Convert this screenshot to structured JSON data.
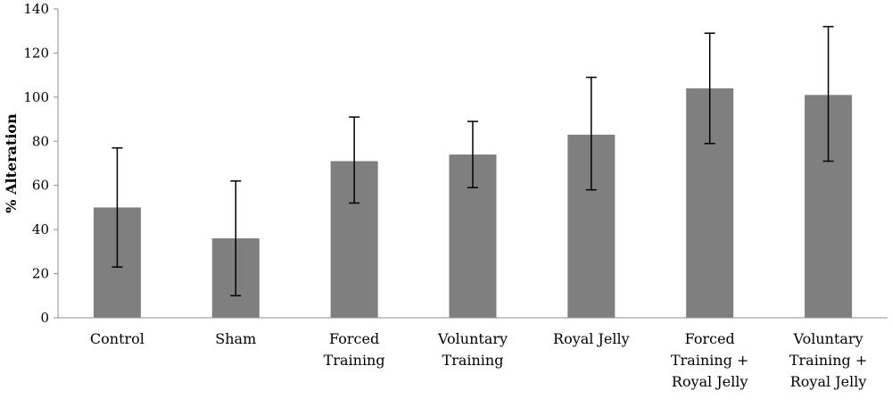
{
  "chart_data": {
    "type": "bar",
    "title": "",
    "xlabel": "",
    "ylabel": "% Alteration",
    "ylim": [
      0,
      140
    ],
    "yticks": [
      0,
      20,
      40,
      60,
      80,
      100,
      120,
      140
    ],
    "grid": false,
    "legend": "none",
    "bar_color": "#7f7f7f",
    "categories": [
      [
        "Control"
      ],
      [
        "Sham"
      ],
      [
        "Forced",
        "Training"
      ],
      [
        "Voluntary",
        "Training"
      ],
      [
        "Royal Jelly"
      ],
      [
        "Forced",
        "Training +",
        "Royal Jelly"
      ],
      [
        "Voluntary",
        "Training +",
        "Royal Jelly"
      ]
    ],
    "values": [
      50,
      36,
      71,
      74,
      83,
      104,
      101
    ],
    "error_low": [
      23,
      10,
      52,
      59,
      58,
      79,
      71
    ],
    "error_high": [
      77,
      62,
      91,
      89,
      109,
      129,
      132
    ]
  }
}
